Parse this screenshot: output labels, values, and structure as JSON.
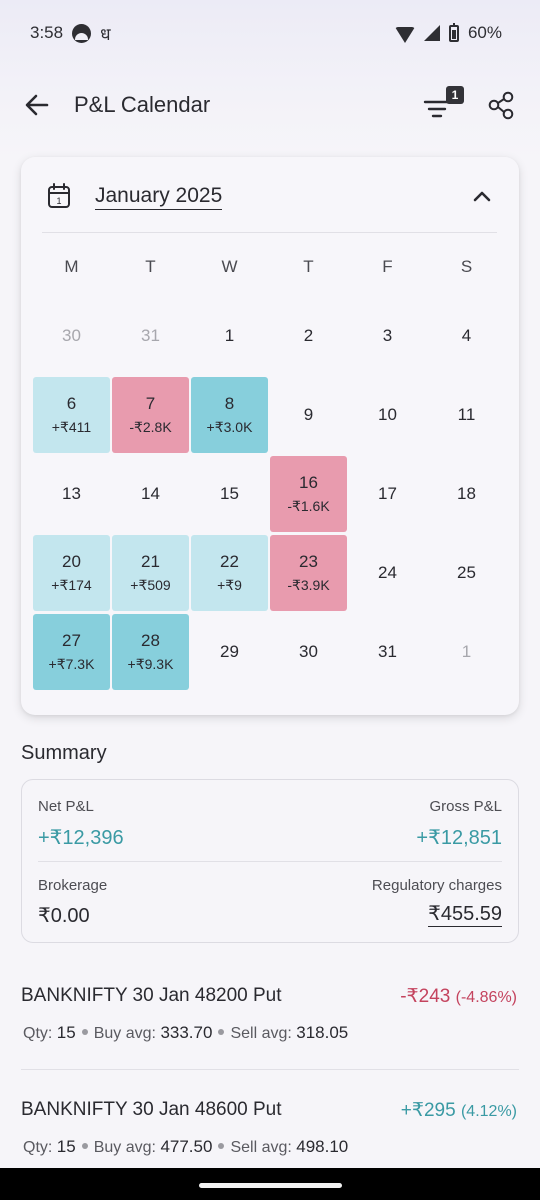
{
  "status_bar": {
    "time": "3:58",
    "hindi_glyph": "ध",
    "battery": "60%"
  },
  "header": {
    "title": "P&L Calendar",
    "filter_count": "1"
  },
  "calendar": {
    "month": "January 2025",
    "weekdays": [
      "M",
      "T",
      "W",
      "T",
      "F",
      "S"
    ],
    "weeks": [
      [
        {
          "d": "30",
          "muted": true
        },
        {
          "d": "31",
          "muted": true
        },
        {
          "d": "1"
        },
        {
          "d": "2"
        },
        {
          "d": "3"
        },
        {
          "d": "4"
        }
      ],
      [
        {
          "d": "6",
          "pnl": "+₹411",
          "tone": "pos-l"
        },
        {
          "d": "7",
          "pnl": "-₹2.8K",
          "tone": "neg"
        },
        {
          "d": "8",
          "pnl": "+₹3.0K",
          "tone": "pos-d"
        },
        {
          "d": "9"
        },
        {
          "d": "10"
        },
        {
          "d": "11"
        }
      ],
      [
        {
          "d": "13"
        },
        {
          "d": "14"
        },
        {
          "d": "15"
        },
        {
          "d": "16",
          "pnl": "-₹1.6K",
          "tone": "neg"
        },
        {
          "d": "17"
        },
        {
          "d": "18"
        }
      ],
      [
        {
          "d": "20",
          "pnl": "+₹174",
          "tone": "pos-l"
        },
        {
          "d": "21",
          "pnl": "+₹509",
          "tone": "pos-l"
        },
        {
          "d": "22",
          "pnl": "+₹9",
          "tone": "pos-l"
        },
        {
          "d": "23",
          "pnl": "-₹3.9K",
          "tone": "neg"
        },
        {
          "d": "24"
        },
        {
          "d": "25"
        }
      ],
      [
        {
          "d": "27",
          "pnl": "+₹7.3K",
          "tone": "pos-d"
        },
        {
          "d": "28",
          "pnl": "+₹9.3K",
          "tone": "pos-d"
        },
        {
          "d": "29"
        },
        {
          "d": "30"
        },
        {
          "d": "31"
        },
        {
          "d": "1",
          "muted": true
        }
      ]
    ]
  },
  "summary": {
    "title": "Summary",
    "net_label": "Net P&L",
    "net_value": "+₹12,396",
    "gross_label": "Gross P&L",
    "gross_value": "+₹12,851",
    "brokerage_label": "Brokerage",
    "brokerage_value": "₹0.00",
    "reg_label": "Regulatory charges",
    "reg_value": "₹455.59"
  },
  "positions": [
    {
      "name": "BANKNIFTY 30 Jan 48200 Put",
      "pnl": "-₹243",
      "pct": "(-4.86%)",
      "tone": "red",
      "qty_label": "Qty:",
      "qty": "15",
      "buy_label": "Buy avg:",
      "buy": "333.70",
      "sell_label": "Sell avg:",
      "sell": "318.05"
    },
    {
      "name": "BANKNIFTY 30 Jan 48600 Put",
      "pnl": "+₹295",
      "pct": "(4.12%)",
      "tone": "teal",
      "qty_label": "Qty:",
      "qty": "15",
      "buy_label": "Buy avg:",
      "buy": "477.50",
      "sell_label": "Sell avg:",
      "sell": "498.10"
    }
  ],
  "icons": {
    "back": "arrow-left-icon",
    "filter": "filter-lines-icon",
    "share": "share-icon",
    "calendar": "calendar-icon",
    "collapse": "chevron-up-icon"
  },
  "colors": {
    "profit": "#3a9aa4",
    "loss": "#c4435e",
    "profit_light": "#c3e6ee",
    "profit_dark": "#87cfdc",
    "loss_cell": "#e89bae"
  }
}
